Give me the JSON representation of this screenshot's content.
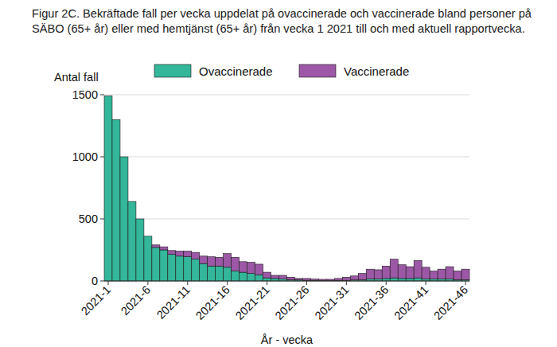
{
  "chart_data": {
    "type": "bar",
    "stacked": true,
    "title": "Figur 2C. Bekräftade fall per vecka uppdelat på ovaccinerade och vaccinerade bland personer på SÄBO (65+ år) eller med hemtjänst (65+ år) från vecka 1 2021 till och med aktuell rapportvecka.",
    "x_label": "År - vecka",
    "y_label": "Antal fall",
    "legend": "top",
    "grid": true,
    "categories": [
      "2021-1",
      null,
      null,
      null,
      null,
      "2021-6",
      null,
      null,
      null,
      null,
      "2021-11",
      null,
      null,
      null,
      null,
      "2021-16",
      null,
      null,
      null,
      null,
      "2021-21",
      null,
      null,
      null,
      null,
      "2021-26",
      null,
      null,
      null,
      null,
      "2021-31",
      null,
      null,
      null,
      null,
      "2021-36",
      null,
      null,
      null,
      null,
      "2021-41",
      null,
      null,
      null,
      null,
      "2021-46"
    ],
    "series": [
      {
        "name": "Ovaccinerade",
        "color": "#33b69a",
        "values": [
          1490,
          1300,
          1000,
          640,
          500,
          360,
          270,
          250,
          215,
          200,
          195,
          175,
          140,
          120,
          120,
          110,
          80,
          70,
          60,
          50,
          25,
          20,
          15,
          10,
          8,
          5,
          5,
          3,
          3,
          5,
          5,
          8,
          10,
          15,
          15,
          20,
          25,
          20,
          20,
          25,
          15,
          15,
          15,
          15,
          10,
          10
        ]
      },
      {
        "name": "Vaccinerade",
        "color": "#9c58a6",
        "values": [
          0,
          0,
          0,
          0,
          0,
          0,
          20,
          25,
          30,
          40,
          45,
          55,
          60,
          75,
          70,
          110,
          110,
          85,
          90,
          85,
          45,
          25,
          30,
          20,
          12,
          15,
          10,
          10,
          10,
          15,
          25,
          32,
          50,
          80,
          75,
          100,
          150,
          110,
          95,
          140,
          95,
          65,
          80,
          100,
          70,
          85
        ]
      }
    ],
    "ylim": [
      0,
      1500
    ],
    "yticks": [
      0,
      500,
      1000,
      1500
    ]
  }
}
